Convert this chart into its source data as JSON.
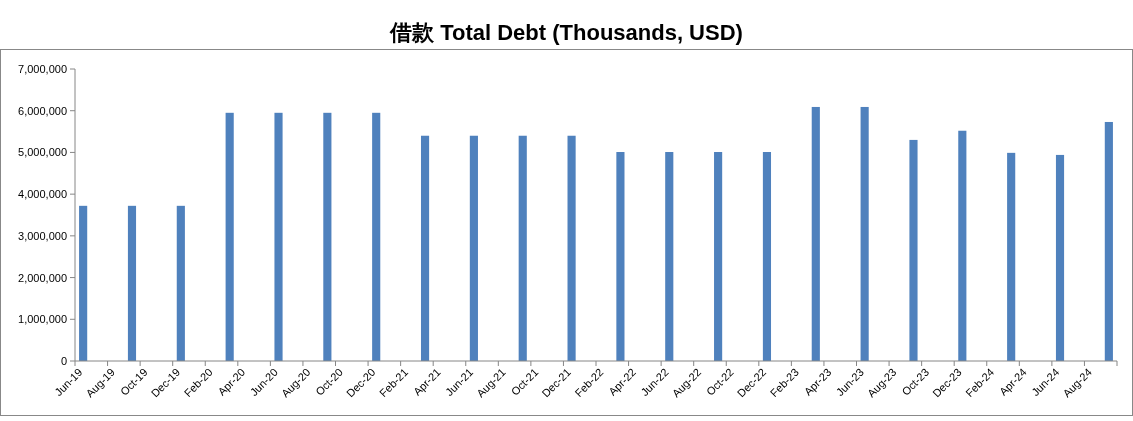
{
  "chart_data": {
    "type": "bar",
    "title": "借款 Total Debt (Thousands, USD)",
    "categories": [
      "Jun-19",
      null,
      "Aug-19",
      null,
      "Oct-19",
      null,
      "Dec-19",
      null,
      "Feb-20",
      null,
      "Apr-20",
      null,
      "Jun-20",
      null,
      "Aug-20",
      null,
      "Oct-20",
      null,
      "Dec-20",
      null,
      "Feb-21",
      null,
      "Apr-21",
      null,
      "Jun-21",
      null,
      "Aug-21",
      null,
      "Oct-21",
      null,
      "Dec-21",
      null,
      "Feb-22",
      null,
      "Apr-22",
      null,
      "Jun-22",
      null,
      "Aug-22",
      null,
      "Oct-22",
      null,
      "Dec-22",
      null,
      "Feb-23",
      null,
      "Apr-23",
      null,
      "Jun-23",
      null,
      "Aug-23",
      null,
      "Oct-23",
      null,
      "Dec-23",
      null,
      "Feb-24",
      null,
      "Apr-24",
      null,
      "Jun-24",
      null,
      "Aug-24",
      null
    ],
    "values": [
      3720000,
      null,
      null,
      3720000,
      null,
      null,
      3720000,
      null,
      null,
      5950000,
      null,
      null,
      5950000,
      null,
      null,
      5950000,
      null,
      null,
      5950000,
      null,
      null,
      5400000,
      null,
      null,
      5400000,
      null,
      null,
      5400000,
      null,
      null,
      5400000,
      null,
      null,
      5010000,
      null,
      null,
      5010000,
      null,
      null,
      5010000,
      null,
      null,
      5010000,
      null,
      null,
      6090000,
      null,
      null,
      6090000,
      null,
      null,
      5300000,
      null,
      null,
      5520000,
      null,
      null,
      4990000,
      null,
      null,
      4940000,
      null,
      null,
      5730000
    ],
    "color": "#4f81bd",
    "ylim": [
      0,
      7000000
    ],
    "yticks": [
      0,
      {
        "value": 1000000,
        "label": "1,000,000"
      },
      {
        "value": 2000000,
        "label": "2,000,000"
      },
      {
        "value": 3000000,
        "label": "3,000,000"
      },
      {
        "value": 4000000,
        "label": "4,000,000"
      },
      {
        "value": 5000000,
        "label": "5,000,000"
      },
      {
        "value": 6000000,
        "label": "6,000,000"
      },
      {
        "value": 7000000,
        "label": "7,000,000"
      }
    ],
    "grid": false
  }
}
